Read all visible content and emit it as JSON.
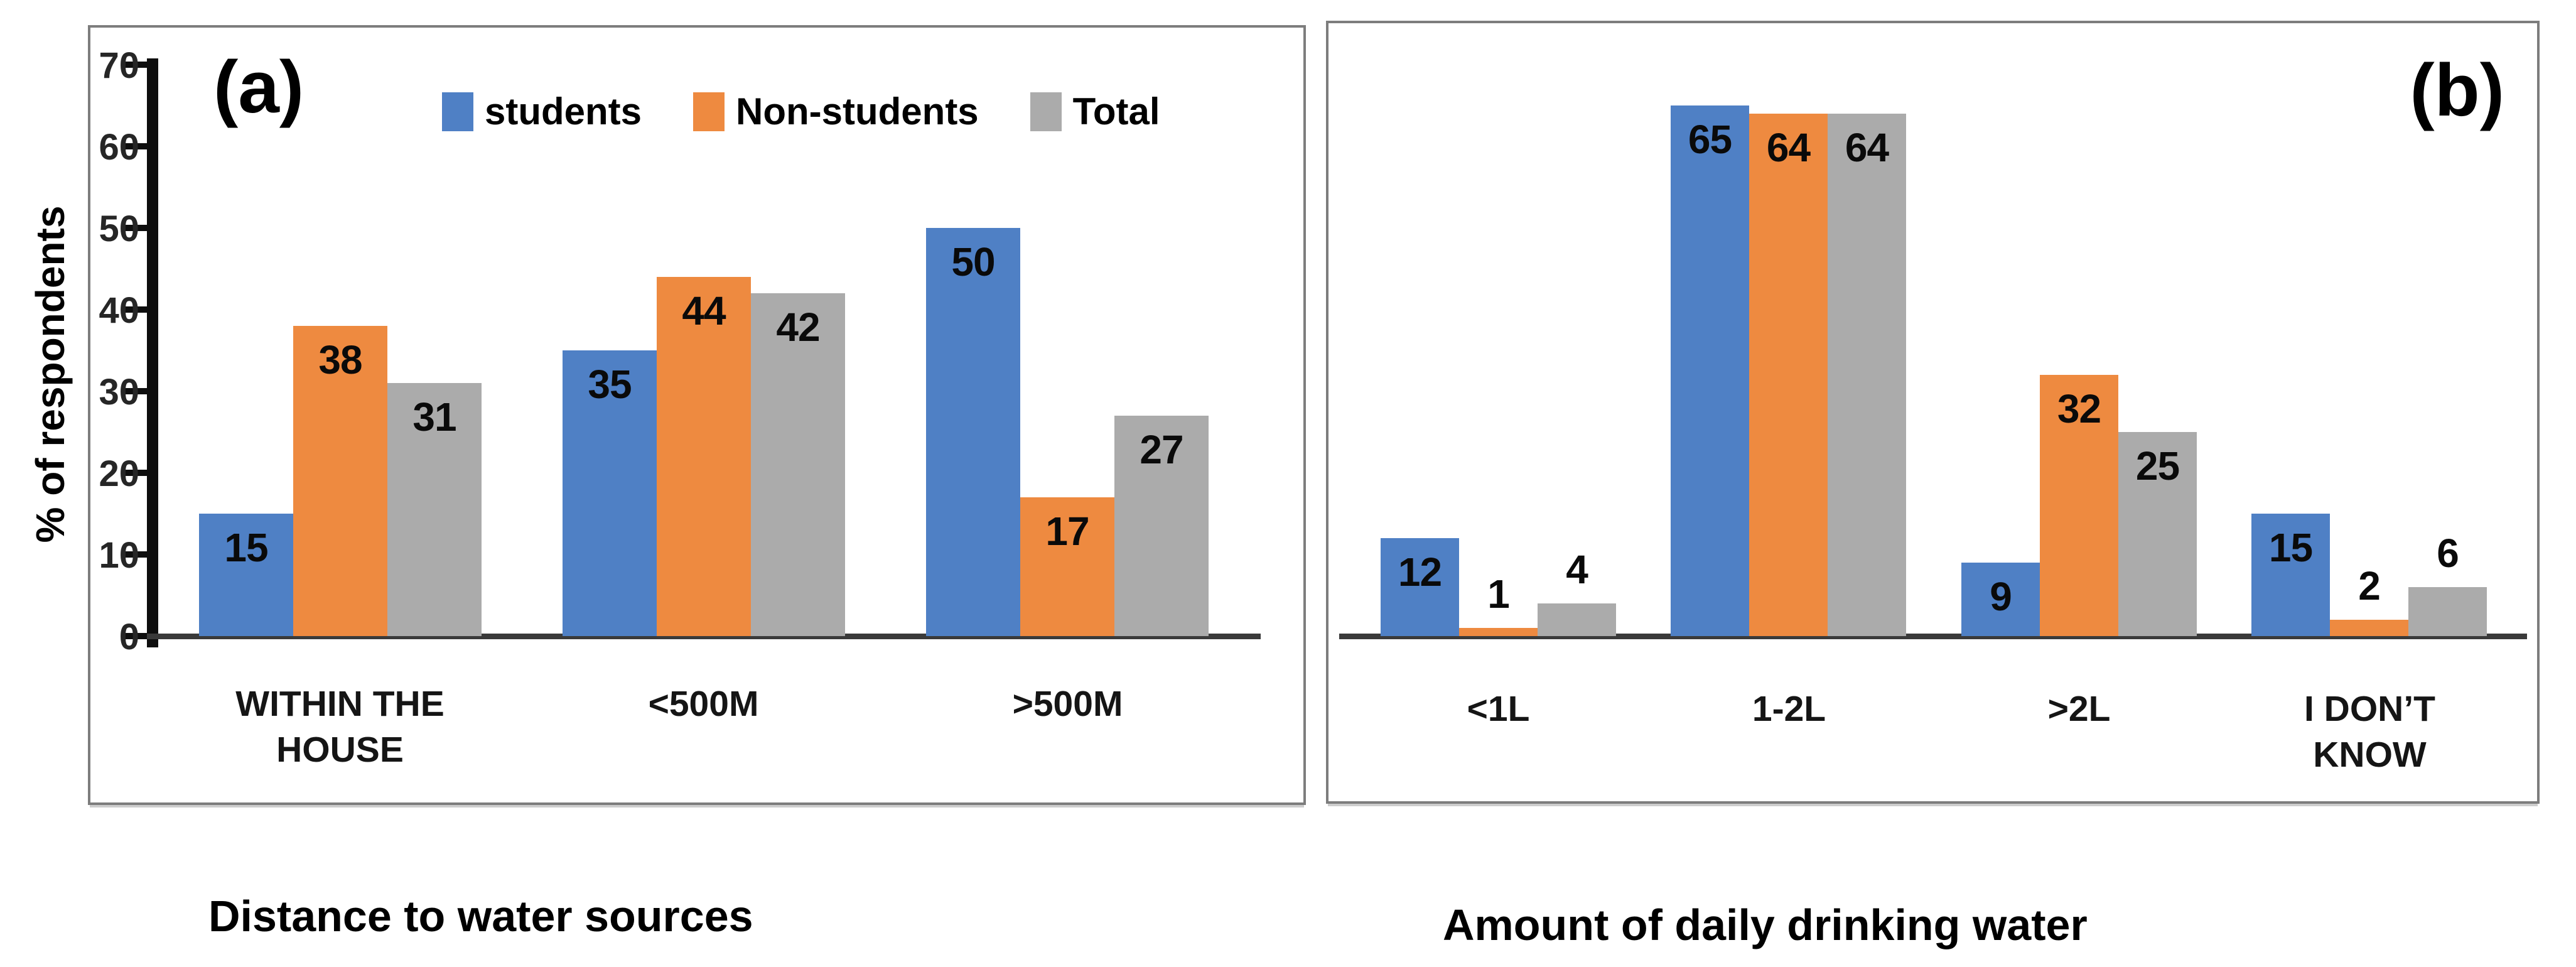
{
  "page_background": "#ffffff",
  "axis_color": "#0e0e0e",
  "baseline_color": "#3a3a3a",
  "panel_border_color": "#7d7d7d",
  "chart_data": [
    {
      "type": "bar",
      "panel_label": "(a)",
      "ylabel": "% of respondents",
      "caption": "Distance to water sources",
      "categories": [
        "WITHIN THE\nHOUSE",
        "<500M",
        ">500M"
      ],
      "series": [
        {
          "name": "students",
          "color": "#4F80C5",
          "values": [
            15,
            35,
            50
          ]
        },
        {
          "name": "Non-students",
          "color": "#EE8A40",
          "values": [
            38,
            44,
            17
          ]
        },
        {
          "name": "Total",
          "color": "#ABABAB",
          "values": [
            31,
            42,
            27
          ]
        }
      ],
      "ylim": [
        0,
        70
      ],
      "yticks": [
        0,
        10,
        20,
        30,
        40,
        50,
        60,
        70
      ],
      "grid": false,
      "legend_position": "top",
      "value_labels": true
    },
    {
      "type": "bar",
      "panel_label": "(b)",
      "ylabel": "",
      "caption": "Amount of daily drinking water",
      "categories": [
        "<1L",
        "1-2L",
        ">2L",
        "I DON’T\nKNOW"
      ],
      "series": [
        {
          "name": "students",
          "color": "#4F80C5",
          "values": [
            12,
            65,
            9,
            15
          ]
        },
        {
          "name": "Non-students",
          "color": "#EE8A40",
          "values": [
            1,
            64,
            32,
            2
          ]
        },
        {
          "name": "Total",
          "color": "#ABABAB",
          "values": [
            4,
            64,
            25,
            6
          ]
        }
      ],
      "ylim": [
        0,
        70
      ],
      "yticks": [],
      "grid": false,
      "legend_position": "none",
      "value_labels": true
    }
  ]
}
